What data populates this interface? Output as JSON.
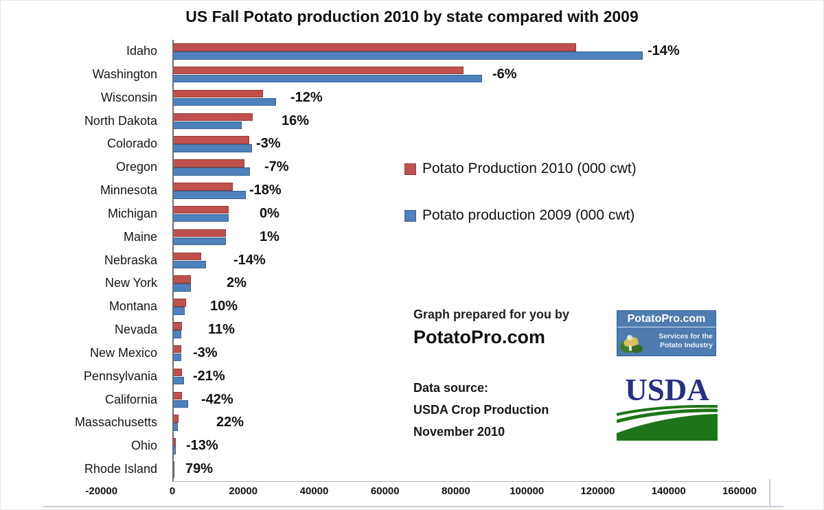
{
  "title": "US Fall Potato production 2010 by state compared with 2009",
  "chart_data": {
    "type": "bar",
    "orientation": "horizontal",
    "title": "US Fall Potato production 2010 by state compared with 2009",
    "categories": [
      "Idaho",
      "Washington",
      "Wisconsin",
      "North Dakota",
      "Colorado",
      "Oregon",
      "Minnesota",
      "Michigan",
      "Maine",
      "Nebraska",
      "New York",
      "Montana",
      "Nevada",
      "New Mexico",
      "Pennsylvania",
      "California",
      "Massachusetts",
      "Ohio",
      "Rhode Island"
    ],
    "series": [
      {
        "name": "Potato Production 2010 (000 cwt)",
        "color": "#c0504d",
        "values": [
          113500,
          81700,
          25200,
          22300,
          21400,
          20000,
          16700,
          15500,
          14800,
          7800,
          4900,
          3500,
          2300,
          2100,
          2300,
          2400,
          1300,
          500,
          220
        ]
      },
      {
        "name": "Potato production 2009 (000 cwt)",
        "color": "#4f81bd",
        "values": [
          132300,
          87000,
          28800,
          19200,
          22100,
          21500,
          20400,
          15500,
          14650,
          9100,
          4800,
          3180,
          2070,
          2170,
          2900,
          4150,
          1070,
          575,
          123
        ]
      }
    ],
    "pct_change": [
      "-14%",
      "-6%",
      "-12%",
      "16%",
      "-3%",
      "-7%",
      "-18%",
      "0%",
      "1%",
      "-14%",
      "2%",
      "10%",
      "11%",
      "-3%",
      "-21%",
      "-42%",
      "22%",
      "-13%",
      "79%"
    ],
    "xlim": [
      -20000,
      160000
    ],
    "x_ticks": [
      "-20000",
      "0",
      "20000",
      "40000",
      "60000",
      "80000",
      "100000",
      "120000",
      "140000",
      "160000"
    ],
    "pct_label_x": [
      690,
      464,
      170,
      157,
      120,
      132,
      110,
      125,
      125,
      87,
      77,
      53,
      50,
      28,
      28,
      40,
      62,
      18,
      17
    ],
    "grid": false,
    "legend_position": "center-right"
  },
  "annotations": {
    "prepared_line1": "Graph prepared for you by",
    "prepared_line2": "PotatoPro.com",
    "source_line1": "Data source:",
    "source_line2": "USDA Crop Production",
    "source_line3": "November 2010"
  },
  "logos": {
    "potatopro": {
      "title": "PotatoPro.com",
      "subtitle_line1": "Services for the",
      "subtitle_line2": "Potato Industry",
      "bg_color": "#4d7cb0"
    },
    "usda": {
      "text": "USDA",
      "blue": "#272f87",
      "green": "#1e7418"
    }
  }
}
